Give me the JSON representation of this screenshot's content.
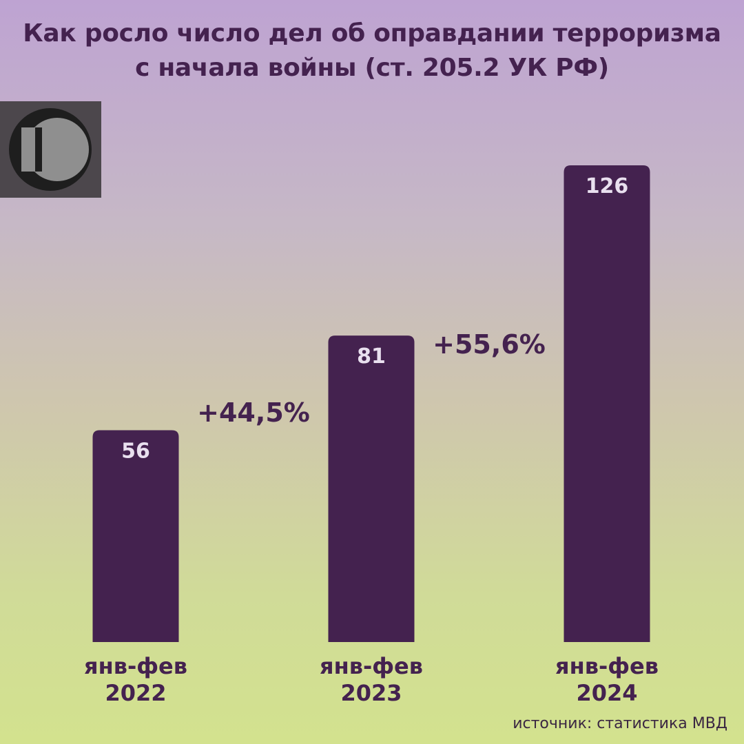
{
  "title": {
    "line1": "Как росло число дел об оправдании терроризма",
    "line2": "с начала войны (ст. 205.2 УК РФ)"
  },
  "logo": {
    "icon": "10-logo-icon"
  },
  "colors": {
    "bar": "#44224f",
    "bar_label": "#e9e0ef",
    "text": "#44224f",
    "logo_bg": "#4c474c",
    "logo_circle": "#8f8f8f",
    "logo_ring": "#1e1e1e"
  },
  "chart_data": {
    "type": "bar",
    "categories": [
      [
        "янв-фев",
        "2022"
      ],
      [
        "янв-фев",
        "2023"
      ],
      [
        "янв-фев",
        "2024"
      ]
    ],
    "values": [
      56,
      81,
      126
    ],
    "data_labels": [
      "56",
      "81",
      "126"
    ],
    "annotations": [
      "+44,5%",
      "+55,6%"
    ],
    "title": "Как росло число дел об оправдании терроризма с начала войны (ст. 205.2 УК РФ)",
    "xlabel": "",
    "ylabel": "",
    "ylim": [
      0,
      126
    ],
    "grid": false
  },
  "source": "источник: статистика МВД"
}
